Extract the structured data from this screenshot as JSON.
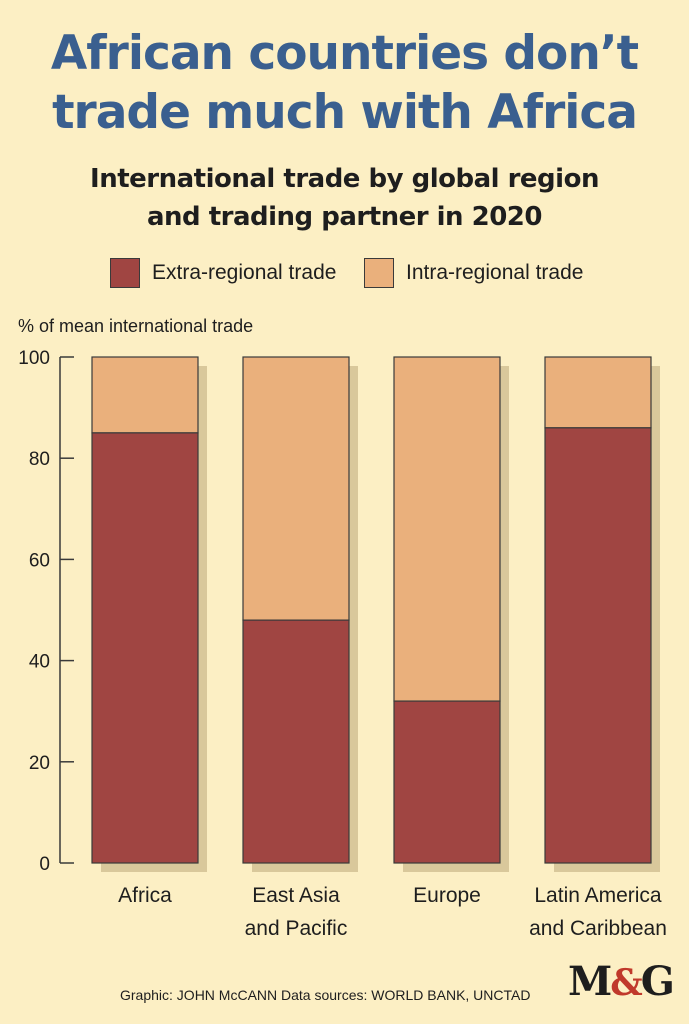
{
  "title": {
    "line1": "African countries don’t",
    "line2": "trade much with Africa"
  },
  "subtitle": {
    "line1": "International trade by global region",
    "line2": "and trading partner in 2020"
  },
  "legend": {
    "extra": "Extra-regional trade",
    "intra": "Intra-regional trade"
  },
  "colors": {
    "extra": "#a04542",
    "intra": "#eab07c",
    "title": "#3a5f8f",
    "background": "#fcefc4"
  },
  "footer": "Graphic: JOHN McCANN  Data sources: WORLD BANK, UNCTAD",
  "logo": {
    "left": "M",
    "amp": "&",
    "right": "G"
  },
  "chart_data": {
    "type": "bar",
    "stacked": true,
    "ylabel": "% of mean international trade",
    "ylim": [
      0,
      100
    ],
    "yticks": [
      0,
      20,
      40,
      60,
      80,
      100
    ],
    "categories": [
      [
        "Africa"
      ],
      [
        "East Asia",
        "and Pacific"
      ],
      [
        "Europe"
      ],
      [
        "Latin America",
        "and Caribbean"
      ]
    ],
    "series": [
      {
        "name": "Extra-regional trade",
        "values": [
          85,
          48,
          32,
          86
        ]
      },
      {
        "name": "Intra-regional trade",
        "values": [
          15,
          52,
          68,
          14
        ]
      }
    ],
    "legend": "top",
    "grid": false
  }
}
